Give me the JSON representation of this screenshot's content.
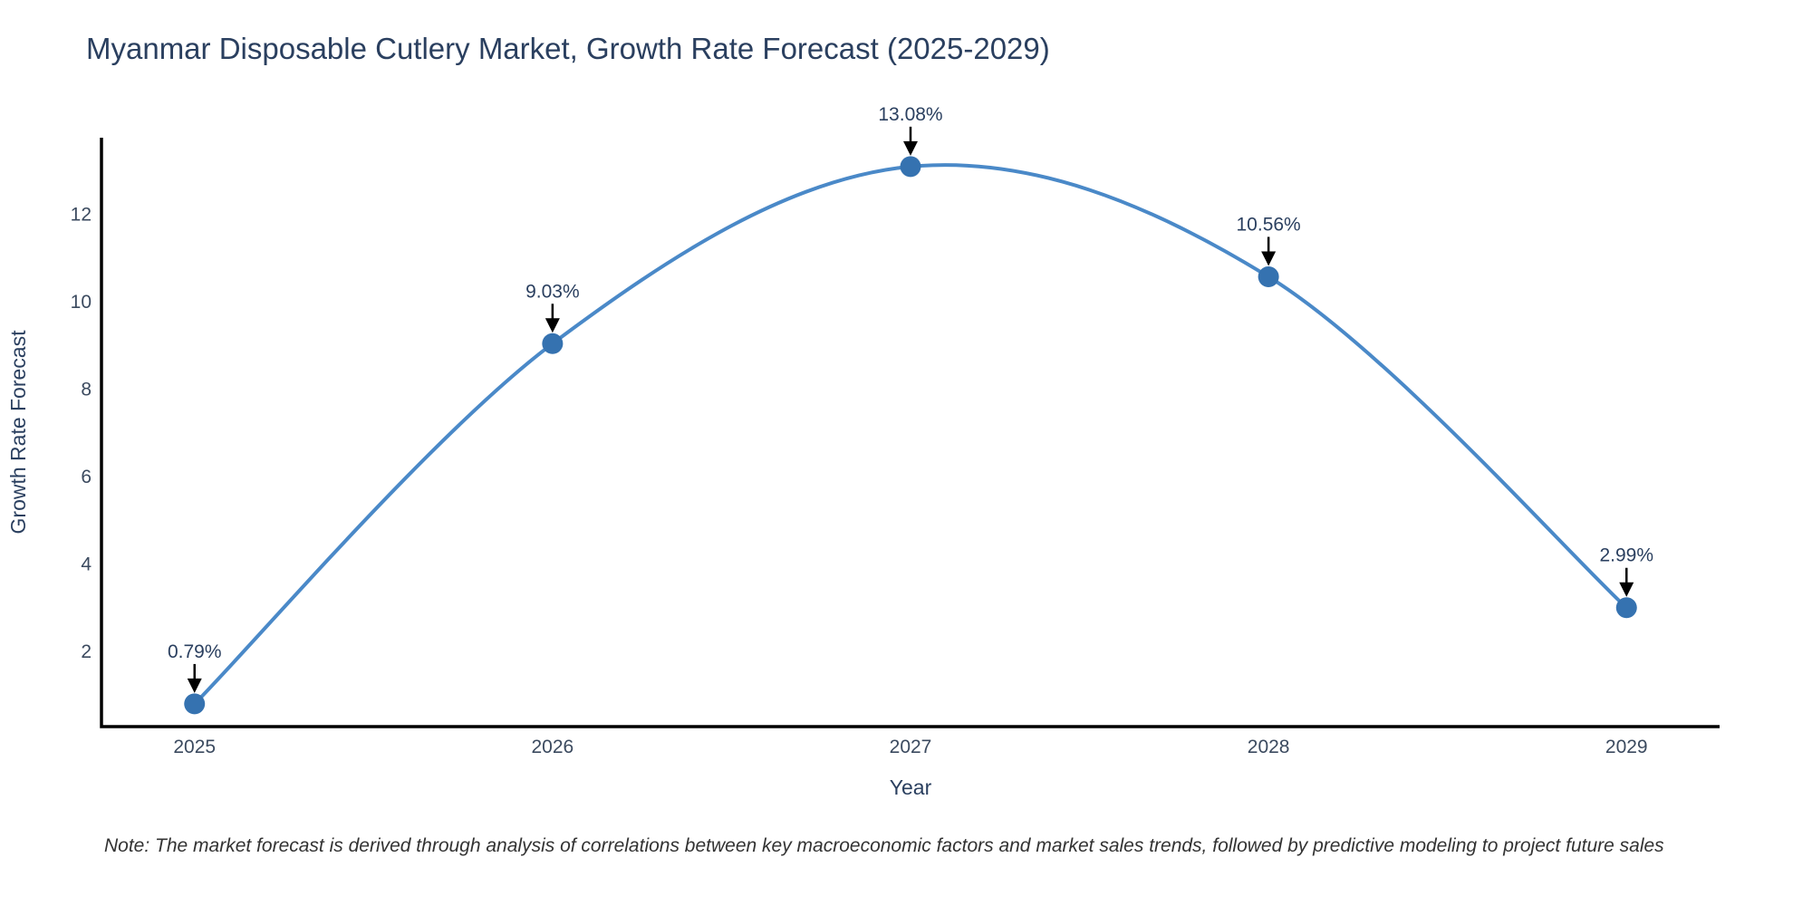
{
  "chart_data": {
    "type": "line",
    "title": "Myanmar Disposable Cutlery Market, Growth Rate Forecast (2025-2029)",
    "xlabel": "Year",
    "ylabel": "Growth Rate Forecast",
    "x": [
      2025,
      2026,
      2027,
      2028,
      2029
    ],
    "values": [
      0.79,
      9.03,
      13.08,
      10.56,
      2.99
    ],
    "point_labels": [
      "0.79%",
      "9.03%",
      "13.08%",
      "10.56%",
      "2.99%"
    ],
    "yticks": [
      2,
      4,
      6,
      8,
      10,
      12
    ],
    "xlim": [
      2024.74,
      2029.26
    ],
    "ylim": [
      0.27,
      13.74
    ],
    "grid": false,
    "legend": "none",
    "line_shape": "spline",
    "note": "Note: The market forecast is derived through analysis of correlations between key macroeconomic factors and market sales trends, followed by predictive modeling to project future sales",
    "colors": {
      "line": "#4a89c8",
      "marker": "#3572b0",
      "axis": "#000000",
      "text": "#2a3f5f",
      "annotation_arrow": "#000000",
      "note_text": "#333333",
      "background": "#ffffff"
    }
  }
}
